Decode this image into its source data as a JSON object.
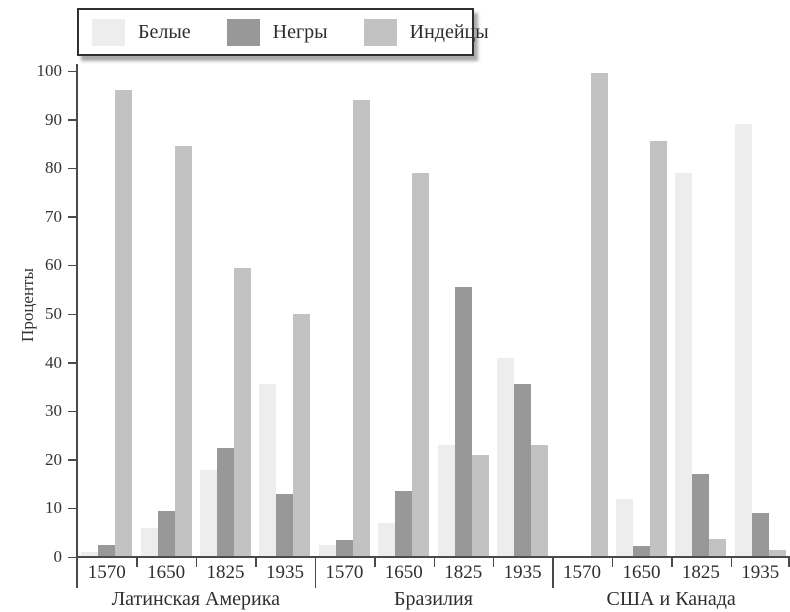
{
  "figure": {
    "background": "#ffffff",
    "axis_color": "#4a4a4a",
    "text_color": "#333333",
    "legend_border_color": "#2f2f2f",
    "legend_shadow_color": "#aaaaaa"
  },
  "chart_data": {
    "type": "bar",
    "title": "",
    "ylabel": "Проценты",
    "xlabel": "",
    "ylim": [
      0,
      100
    ],
    "yticks": [
      0,
      10,
      20,
      30,
      40,
      50,
      60,
      70,
      80,
      90,
      100
    ],
    "grid": false,
    "legend_position": "top-left",
    "series": [
      {
        "name": "Белые",
        "color": "#ededed"
      },
      {
        "name": "Негры",
        "color": "#989898"
      },
      {
        "name": "Индейцы",
        "color": "#c2c2c2"
      }
    ],
    "categories": [
      "1570",
      "1650",
      "1825",
      "1935"
    ],
    "groups": [
      {
        "label": "Латинская Америка",
        "values": [
          [
            1,
            2.5,
            96
          ],
          [
            6,
            9.5,
            84.5
          ],
          [
            18,
            22.5,
            59.5
          ],
          [
            35.5,
            13,
            50
          ]
        ]
      },
      {
        "label": "Бразилия",
        "values": [
          [
            2.5,
            3.5,
            94
          ],
          [
            7,
            13.5,
            79
          ],
          [
            23,
            55.5,
            21
          ],
          [
            41,
            35.5,
            23
          ]
        ]
      },
      {
        "label": "США и Канада",
        "values": [
          [
            0,
            0,
            99.5
          ],
          [
            12,
            2.3,
            85.5
          ],
          [
            79,
            17,
            3.7
          ],
          [
            89,
            9,
            1.5
          ]
        ]
      }
    ]
  }
}
